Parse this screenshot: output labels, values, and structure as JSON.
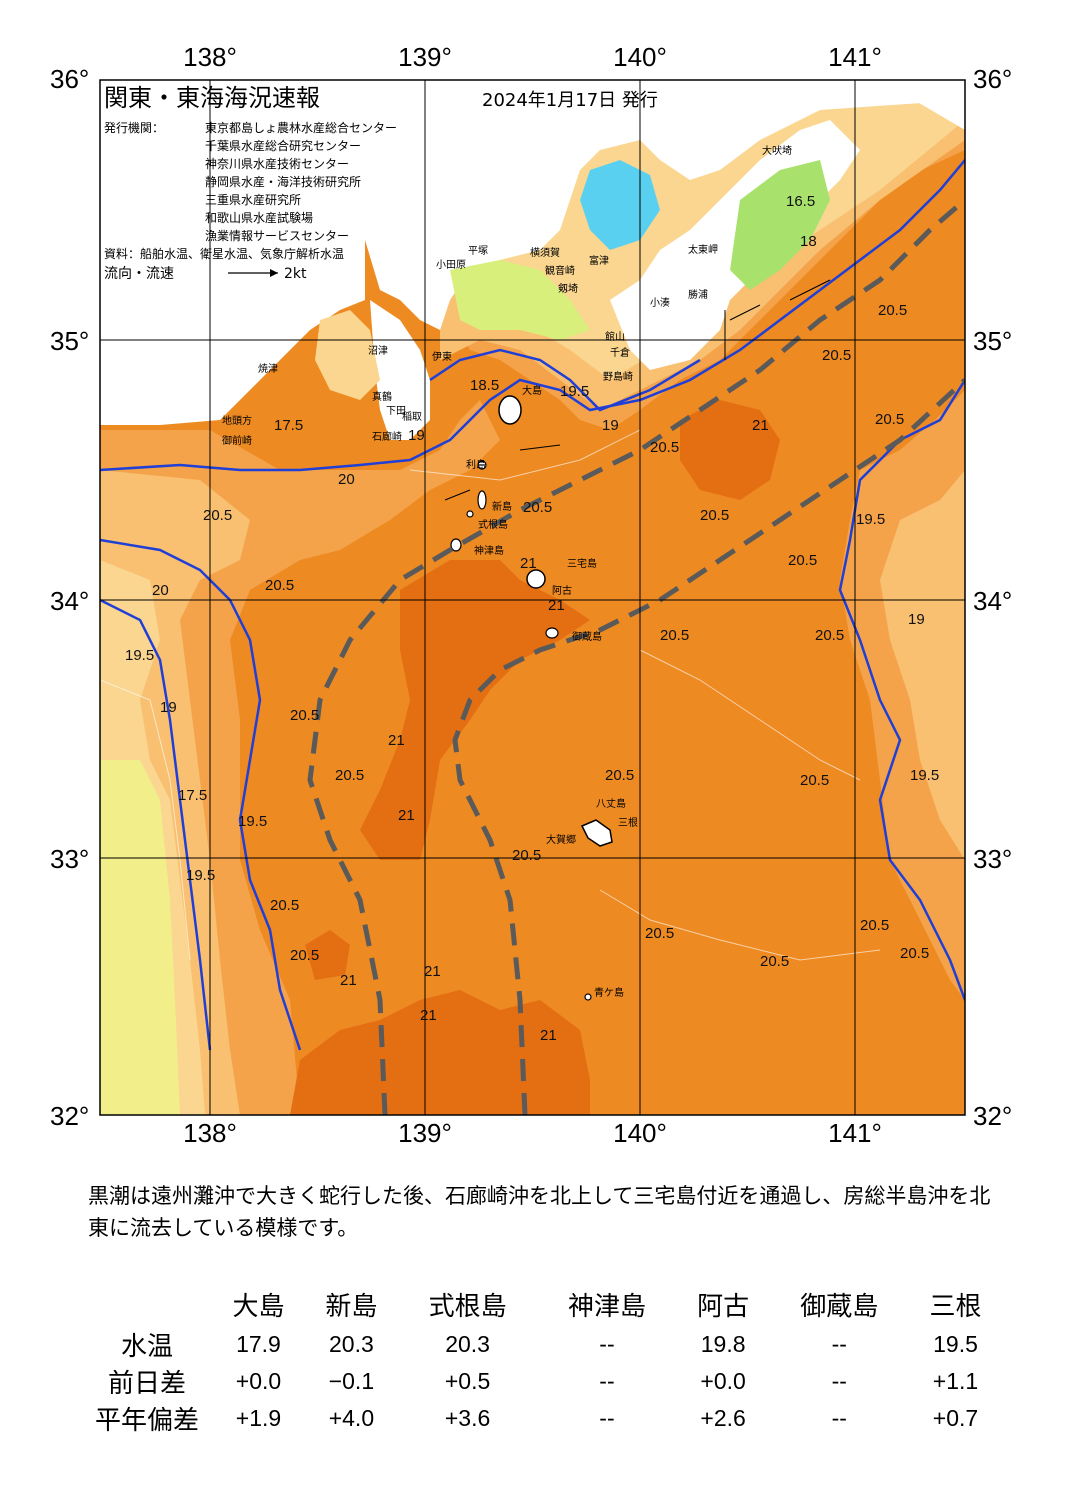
{
  "title": "関東・東海海況速報",
  "issue_date": "2024年1月17日 発行",
  "publishers_label": "発行機関：",
  "publishers": [
    "東京都島しょ農林水産総合センター",
    "千葉県水産総合研究センター",
    "神奈川県水産技術センター",
    "静岡県水産・海洋技術研究所",
    "三重県水産研究所",
    "和歌山県水産試験場",
    "漁業情報サービスセンター"
  ],
  "source_note": "資料：船舶水温、衛星水温、気象庁解析水温",
  "current_legend": {
    "label": "流向・流速",
    "scale": "2kt"
  },
  "axes": {
    "lon_ticks": [
      "138°",
      "139°",
      "140°",
      "141°"
    ],
    "lat_ticks": [
      "36°",
      "35°",
      "34°",
      "33°",
      "32°"
    ]
  },
  "place_names": [
    "大吠埼",
    "太東岬",
    "小湊",
    "勝浦",
    "館山",
    "千倉",
    "野島崎",
    "富津",
    "横須賀",
    "観音崎",
    "平塚",
    "小田原",
    "剱埼",
    "真鶴",
    "伊東",
    "稲取",
    "下田",
    "石廊崎",
    "大島",
    "利島",
    "新島",
    "式根島",
    "神津島",
    "三宅島",
    "阿古",
    "御蔵島",
    "八丈島",
    "三根",
    "大賀郷",
    "青ケ島",
    "沼津",
    "焼津",
    "御前崎",
    "地頭方"
  ],
  "isotherm_labels": [
    "16.5",
    "17.5",
    "18",
    "18.5",
    "19",
    "19.5",
    "20",
    "20.5",
    "21"
  ],
  "colors": {
    "t21": "#e46e12",
    "t205": "#ee8a22",
    "t20": "#f4a34a",
    "t195": "#f8c070",
    "t19": "#fad690",
    "t185": "#f2ee8a",
    "t18": "#d8ef7c",
    "t175": "#a8e26c",
    "t17": "#70d878",
    "t165": "#58d8c6",
    "t16": "#5ad0f0",
    "kuroshio_axis": "#5a5a5a",
    "isotherm_line": "#1f3fd6"
  },
  "description": "黒潮は遠州灘沖で大きく蛇行した後、石廊崎沖を北上して三宅島付近を通過し、房総半島沖を北東に流去している模様です。",
  "table": {
    "stations": [
      "大島",
      "新島",
      "式根島",
      "神津島",
      "阿古",
      "御蔵島",
      "三根"
    ],
    "rows": [
      {
        "label": "水温",
        "values": [
          "17.9",
          "20.3",
          "20.3",
          "--",
          "19.8",
          "--",
          "19.5"
        ]
      },
      {
        "label": "前日差",
        "values": [
          "+0.0",
          "−0.1",
          "+0.5",
          "--",
          "+0.0",
          "--",
          "+1.1"
        ]
      },
      {
        "label": "平年偏差",
        "values": [
          "+1.9",
          "+4.0",
          "+3.6",
          "--",
          "+2.6",
          "--",
          "+0.7"
        ]
      }
    ]
  }
}
